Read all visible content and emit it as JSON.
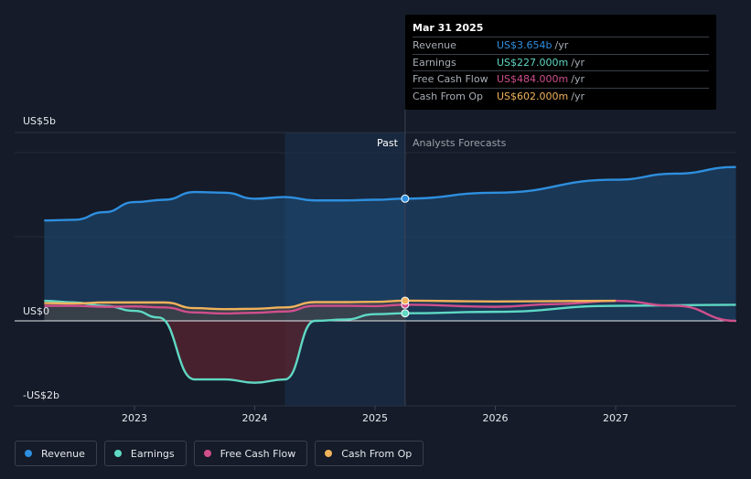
{
  "chart_data": {
    "type": "line",
    "x_range": [
      2022.2,
      2028.0
    ],
    "y_range_billions": [
      -2.1,
      5.1
    ],
    "y_axis_labels": [
      {
        "value": 5,
        "text": "US$5b"
      },
      {
        "value": 0,
        "text": "US$0"
      },
      {
        "value": -2,
        "text": "-US$2b"
      }
    ],
    "x_ticks": [
      {
        "value": 2023,
        "text": "2023"
      },
      {
        "value": 2024,
        "text": "2024"
      },
      {
        "value": 2025,
        "text": "2025"
      },
      {
        "value": 2026,
        "text": "2026"
      },
      {
        "value": 2027,
        "text": "2027"
      }
    ],
    "past_label": "Past",
    "forecast_label": "Analysts Forecasts",
    "divider_x": 2025.25,
    "highlight_start_x": 2024.25,
    "series": [
      {
        "name": "Revenue",
        "color": "#2e8fdf",
        "past": [
          [
            2022.25,
            3.0
          ],
          [
            2022.5,
            3.02
          ],
          [
            2022.75,
            3.25
          ],
          [
            2023.0,
            3.55
          ],
          [
            2023.25,
            3.62
          ],
          [
            2023.5,
            3.85
          ],
          [
            2023.75,
            3.83
          ],
          [
            2024.0,
            3.65
          ],
          [
            2024.25,
            3.7
          ],
          [
            2024.5,
            3.6
          ],
          [
            2024.75,
            3.6
          ],
          [
            2025.0,
            3.62
          ],
          [
            2025.25,
            3.654
          ]
        ],
        "forecast": [
          [
            2025.25,
            3.654
          ],
          [
            2026.0,
            3.83
          ],
          [
            2027.0,
            4.22
          ],
          [
            2027.5,
            4.4
          ],
          [
            2028.0,
            4.6
          ]
        ]
      },
      {
        "name": "Earnings",
        "color": "#5fd8c4",
        "past": [
          [
            2022.25,
            0.6
          ],
          [
            2022.5,
            0.55
          ],
          [
            2022.75,
            0.45
          ],
          [
            2023.0,
            0.3
          ],
          [
            2023.2,
            0.1
          ],
          [
            2023.5,
            -1.75
          ],
          [
            2023.75,
            -1.75
          ],
          [
            2024.0,
            -1.85
          ],
          [
            2024.25,
            -1.75
          ],
          [
            2024.5,
            0.0
          ],
          [
            2024.75,
            0.04
          ],
          [
            2025.0,
            0.2
          ],
          [
            2025.25,
            0.227
          ]
        ],
        "forecast": [
          [
            2025.25,
            0.227
          ],
          [
            2026.0,
            0.27
          ],
          [
            2027.0,
            0.45
          ],
          [
            2028.0,
            0.48
          ]
        ]
      },
      {
        "name": "Free Cash Flow",
        "color": "#cf4f8c",
        "past": [
          [
            2022.25,
            0.45
          ],
          [
            2022.5,
            0.45
          ],
          [
            2022.75,
            0.42
          ],
          [
            2023.0,
            0.43
          ],
          [
            2023.25,
            0.4
          ],
          [
            2023.5,
            0.25
          ],
          [
            2023.75,
            0.22
          ],
          [
            2024.0,
            0.24
          ],
          [
            2024.25,
            0.28
          ],
          [
            2024.5,
            0.45
          ],
          [
            2024.75,
            0.45
          ],
          [
            2025.0,
            0.44
          ],
          [
            2025.25,
            0.484
          ]
        ],
        "forecast": [
          [
            2025.25,
            0.484
          ],
          [
            2026.0,
            0.42
          ],
          [
            2026.5,
            0.5
          ],
          [
            2027.0,
            0.6
          ],
          [
            2027.5,
            0.45
          ],
          [
            2028.0,
            0.0
          ]
        ]
      },
      {
        "name": "Cash From Op",
        "color": "#f0b25c",
        "past": [
          [
            2022.25,
            0.53
          ],
          [
            2022.5,
            0.52
          ],
          [
            2022.75,
            0.55
          ],
          [
            2023.0,
            0.55
          ],
          [
            2023.25,
            0.55
          ],
          [
            2023.5,
            0.38
          ],
          [
            2023.75,
            0.35
          ],
          [
            2024.0,
            0.36
          ],
          [
            2024.25,
            0.4
          ],
          [
            2024.5,
            0.56
          ],
          [
            2024.75,
            0.56
          ],
          [
            2025.0,
            0.57
          ],
          [
            2025.25,
            0.602
          ]
        ],
        "forecast": [
          [
            2025.25,
            0.602
          ],
          [
            2026.0,
            0.58
          ],
          [
            2027.0,
            0.6
          ]
        ]
      }
    ]
  },
  "tooltip": {
    "date": "Mar 31 2025",
    "unit": "/yr",
    "rows": [
      {
        "label": "Revenue",
        "value": "US$3.654b",
        "color": "#2e8fdf"
      },
      {
        "label": "Earnings",
        "value": "US$227.000m",
        "color": "#5fd8c4"
      },
      {
        "label": "Free Cash Flow",
        "value": "US$484.000m",
        "color": "#cf4f8c"
      },
      {
        "label": "Cash From Op",
        "value": "US$602.000m",
        "color": "#f0b25c"
      }
    ]
  },
  "legend": [
    {
      "label": "Revenue",
      "color": "#2e8fdf"
    },
    {
      "label": "Earnings",
      "color": "#5fd8c4"
    },
    {
      "label": "Free Cash Flow",
      "color": "#cf4f8c"
    },
    {
      "label": "Cash From Op",
      "color": "#f0b25c"
    }
  ]
}
